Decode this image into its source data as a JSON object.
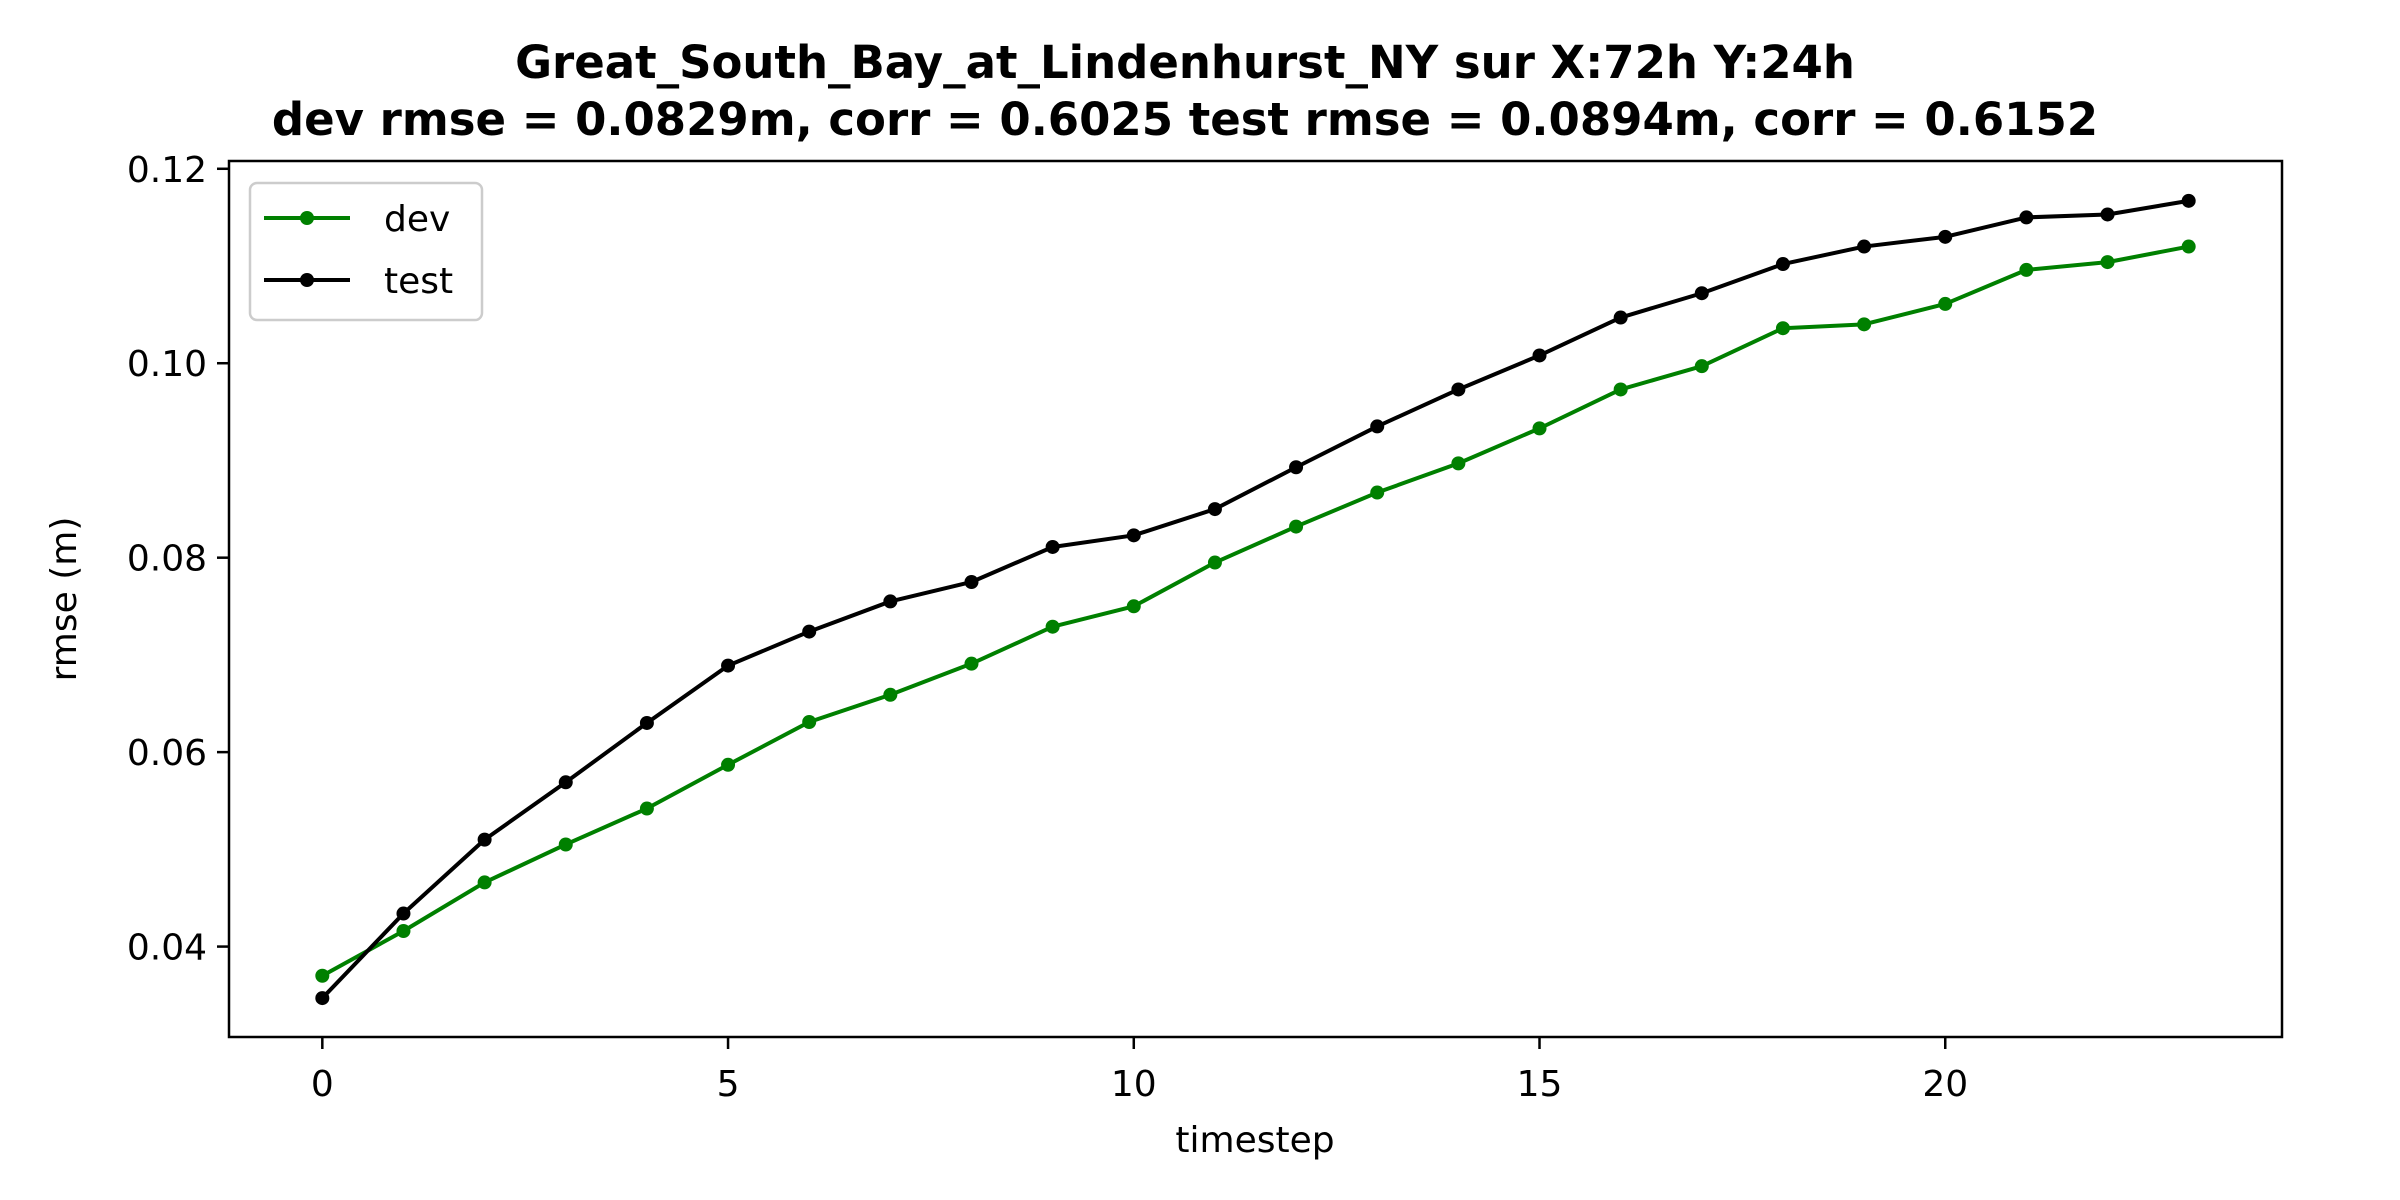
{
  "chart_data": {
    "type": "line",
    "title": "Great_South_Bay_at_Lindenhurst_NY   sur   X:72h   Y:24h",
    "subtitle": "dev rmse = 0.0829m, corr = 0.6025   test rmse = 0.0894m, corr = 0.6152",
    "xlabel": "timestep",
    "ylabel": "rmse (m)",
    "xlim": [
      -1.15,
      24.15
    ],
    "ylim": [
      0.0307,
      0.1208
    ],
    "xticks": [
      0,
      5,
      10,
      15,
      20
    ],
    "xtick_labels": [
      "0",
      "5",
      "10",
      "15",
      "20"
    ],
    "yticks": [
      0.04,
      0.06,
      0.08,
      0.1,
      0.12
    ],
    "ytick_labels": [
      "0.04",
      "0.06",
      "0.08",
      "0.10",
      "0.12"
    ],
    "grid": false,
    "legend_position": "top-left",
    "x": [
      0,
      1,
      2,
      3,
      4,
      5,
      6,
      7,
      8,
      9,
      10,
      11,
      12,
      13,
      14,
      15,
      16,
      17,
      18,
      19,
      20,
      21,
      22,
      23
    ],
    "series": [
      {
        "name": "dev",
        "color": "#008000",
        "values": [
          0.037,
          0.0416,
          0.0466,
          0.0505,
          0.0542,
          0.0587,
          0.0631,
          0.0659,
          0.0691,
          0.0729,
          0.075,
          0.0795,
          0.0832,
          0.0867,
          0.0897,
          0.0933,
          0.0973,
          0.0997,
          0.1036,
          0.104,
          0.1061,
          0.1096,
          0.1104,
          0.112
        ]
      },
      {
        "name": "test",
        "color": "#000000",
        "values": [
          0.0347,
          0.0434,
          0.051,
          0.0569,
          0.063,
          0.0689,
          0.0724,
          0.0755,
          0.0775,
          0.0811,
          0.0823,
          0.085,
          0.0893,
          0.0935,
          0.0973,
          0.1008,
          0.1047,
          0.1072,
          0.1102,
          0.112,
          0.113,
          0.115,
          0.1153,
          0.1167
        ]
      }
    ]
  }
}
